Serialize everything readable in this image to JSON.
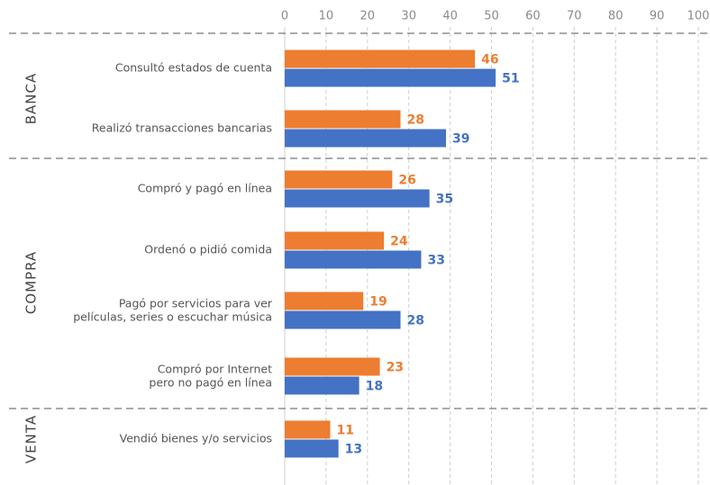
{
  "chart_data": {
    "type": "bar",
    "orientation": "horizontal",
    "groups": [
      {
        "label": "BANCA",
        "categories": [
          "Consultó estados de cuenta",
          "Realizó transacciones bancarias"
        ]
      },
      {
        "label": "COMPRA",
        "categories": [
          "Compró y pagó en línea",
          "Ordenó o pidió comida",
          "Pagó por servicios para ver\npelículas, series o escuchar música",
          "Compró por Internet\npero no pagó en línea"
        ]
      },
      {
        "label": "VENTA",
        "categories": [
          "Vendió bienes y/o servicios"
        ]
      }
    ],
    "series": [
      {
        "color": "#ed7d31",
        "values": [
          46,
          28,
          26,
          24,
          19,
          23,
          11
        ]
      },
      {
        "color": "#4472c4",
        "values": [
          51,
          39,
          35,
          33,
          28,
          18,
          13
        ]
      }
    ],
    "xlim": [
      0,
      100
    ],
    "xticks": [
      0,
      10,
      20,
      30,
      40,
      50,
      60,
      70,
      80,
      90,
      100
    ],
    "grid": true
  }
}
